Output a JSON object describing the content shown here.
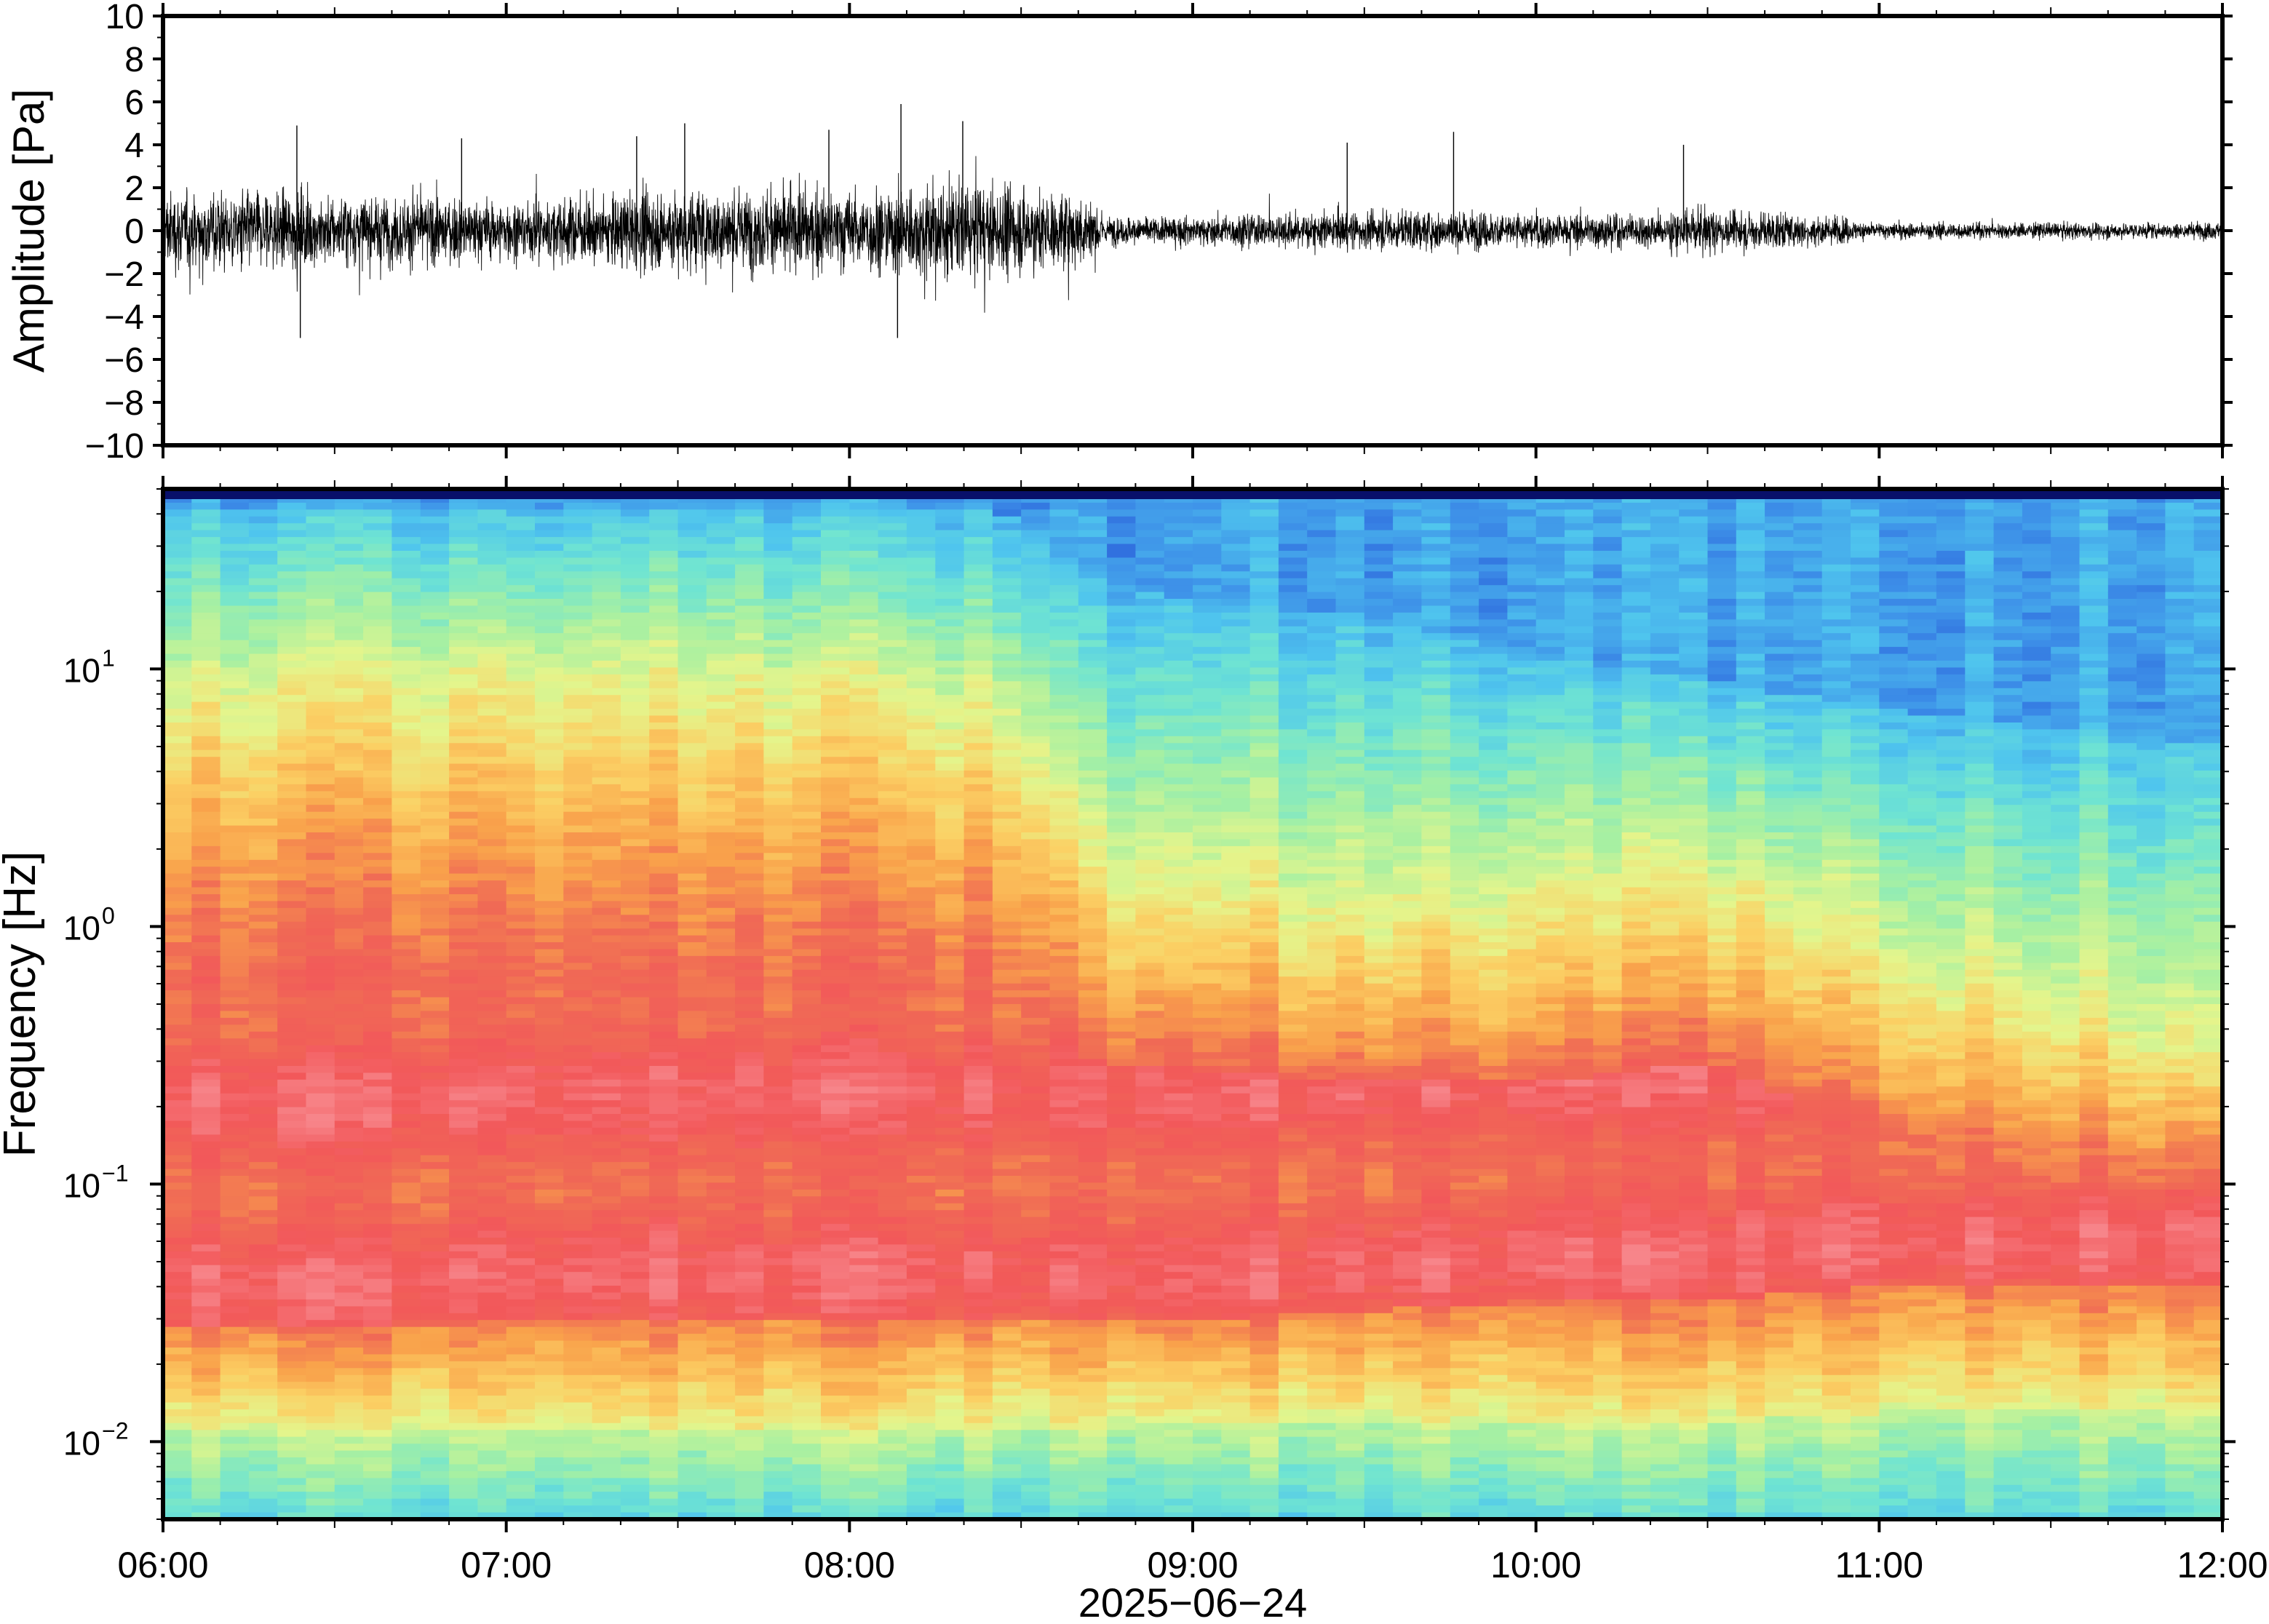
{
  "chart_data": [
    {
      "type": "line",
      "ylabel": "Amplitude [Pa]",
      "ylim": [
        -10,
        10
      ],
      "yticks": [
        10,
        8,
        6,
        4,
        2,
        0,
        -2,
        -4,
        -6,
        -8,
        -10
      ],
      "ytick_labels": [
        "10",
        "8",
        "6",
        "4",
        "2",
        "0",
        "−2",
        "−4",
        "−6",
        "−8",
        "−10"
      ],
      "x_range": [
        "06:00",
        "12:00"
      ],
      "envelope": {
        "x_hours": [
          6.0,
          6.25,
          6.5,
          6.75,
          7.0,
          7.25,
          7.5,
          7.75,
          8.0,
          8.25,
          8.5,
          8.7,
          8.75,
          9.0,
          9.25,
          9.5,
          9.75,
          10.0,
          10.25,
          10.5,
          10.75,
          11.0,
          11.25,
          11.5,
          11.75,
          12.0
        ],
        "typical_amplitude_pa": [
          2.2,
          2.3,
          2.0,
          2.0,
          1.7,
          1.9,
          2.4,
          2.3,
          2.3,
          2.8,
          2.4,
          2.0,
          0.8,
          0.8,
          1.0,
          1.1,
          1.1,
          1.0,
          0.9,
          1.2,
          1.0,
          0.5,
          0.45,
          0.45,
          0.45,
          0.5
        ]
      },
      "peaks": [
        {
          "x_hour": 6.39,
          "y": 4.9
        },
        {
          "x_hour": 6.4,
          "y": -5.0
        },
        {
          "x_hour": 6.87,
          "y": 4.3
        },
        {
          "x_hour": 7.38,
          "y": 4.4
        },
        {
          "x_hour": 7.52,
          "y": 5.0
        },
        {
          "x_hour": 7.94,
          "y": 4.7
        },
        {
          "x_hour": 8.15,
          "y": 5.9
        },
        {
          "x_hour": 8.14,
          "y": -5.0
        },
        {
          "x_hour": 8.33,
          "y": 5.1
        },
        {
          "x_hour": 9.45,
          "y": 4.1
        },
        {
          "x_hour": 9.76,
          "y": 4.6
        },
        {
          "x_hour": 10.43,
          "y": 4.0
        }
      ]
    },
    {
      "type": "heatmap",
      "ylabel": "Frequency [Hz]",
      "yscale": "log",
      "ylim": [
        0.005,
        50
      ],
      "yticks": [
        0.01,
        0.1,
        1,
        10
      ],
      "ytick_base": [
        "10",
        "10",
        "10",
        "10"
      ],
      "ytick_exponents": [
        "−2",
        "−1",
        "0",
        "1"
      ],
      "colormap": [
        "#08105e",
        "#1d3fcf",
        "#3d8fe8",
        "#4fc5ee",
        "#6fe4d2",
        "#a7f0a2",
        "#e4f58c",
        "#fbd064",
        "#f9a24b",
        "#f06a55",
        "#f2585a",
        "#f7858a"
      ],
      "x_hours": [
        6.0,
        6.5,
        7.0,
        7.5,
        8.0,
        8.5,
        8.7,
        9.0,
        9.5,
        10.0,
        10.5,
        11.0,
        11.5,
        12.0
      ],
      "band_edges_hz": {
        "top_blue_edge": [
          42,
          42,
          42,
          42,
          42,
          40,
          22,
          18,
          16,
          11,
          9,
          7,
          6,
          5
        ],
        "yellow_band": [
          8,
          9,
          9,
          9,
          8,
          7,
          2.0,
          1.5,
          1.2,
          1.3,
          1.5,
          0.8,
          0.5,
          0.3
        ],
        "orange_band": [
          2.0,
          2.2,
          2.2,
          2.0,
          2.0,
          1.8,
          0.6,
          0.5,
          0.4,
          0.4,
          0.5,
          0.25,
          0.18,
          0.15
        ],
        "red_band_top": [
          0.6,
          0.6,
          0.6,
          0.55,
          0.55,
          0.55,
          0.3,
          0.28,
          0.25,
          0.25,
          0.3,
          0.15,
          0.1,
          0.09
        ],
        "red_band_bottom": [
          0.028,
          0.027,
          0.03,
          0.03,
          0.03,
          0.03,
          0.03,
          0.03,
          0.032,
          0.035,
          0.035,
          0.04,
          0.04,
          0.04
        ],
        "green_band_bottom": [
          0.011,
          0.011,
          0.011,
          0.011,
          0.011,
          0.011,
          0.011,
          0.012,
          0.012,
          0.012,
          0.012,
          0.013,
          0.013,
          0.013
        ]
      },
      "x_tick_labels": [
        "06:00",
        "07:00",
        "08:00",
        "09:00",
        "10:00",
        "11:00",
        "12:00"
      ],
      "xlabel": "2025−06−24"
    }
  ]
}
